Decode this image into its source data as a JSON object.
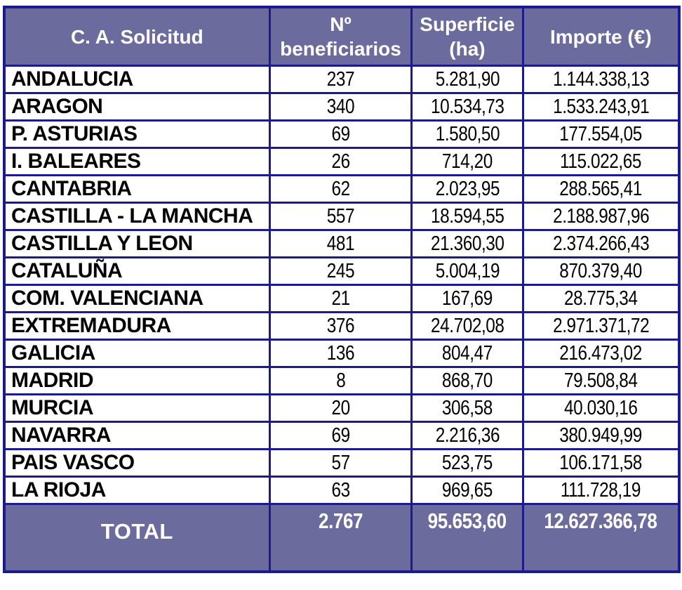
{
  "colors": {
    "header_bg": "#6b6b9e",
    "total_bg": "#6b6b9e",
    "grid_border": "#1b1b8e",
    "header_text": "#ffffff",
    "body_text": "#000000",
    "page_bg": "#ffffff"
  },
  "table": {
    "columns": {
      "region": "C. A. Solicitud",
      "beneficiaries": "Nº beneficiarios",
      "surface": "Superficie (ha)",
      "amount": "Importe (€)"
    },
    "rows": [
      {
        "region": "ANDALUCIA",
        "beneficiaries": "237",
        "surface": "5.281,90",
        "amount": "1.144.338,13"
      },
      {
        "region": "ARAGON",
        "beneficiaries": "340",
        "surface": "10.534,73",
        "amount": "1.533.243,91"
      },
      {
        "region": "P. ASTURIAS",
        "beneficiaries": "69",
        "surface": "1.580,50",
        "amount": "177.554,05"
      },
      {
        "region": "I. BALEARES",
        "beneficiaries": "26",
        "surface": "714,20",
        "amount": "115.022,65"
      },
      {
        "region": "CANTABRIA",
        "beneficiaries": "62",
        "surface": "2.023,95",
        "amount": "288.565,41"
      },
      {
        "region": "CASTILLA - LA MANCHA",
        "beneficiaries": "557",
        "surface": "18.594,55",
        "amount": "2.188.987,96"
      },
      {
        "region": "CASTILLA Y LEON",
        "beneficiaries": "481",
        "surface": "21.360,30",
        "amount": "2.374.266,43"
      },
      {
        "region": "CATALUÑA",
        "beneficiaries": "245",
        "surface": "5.004,19",
        "amount": "870.379,40"
      },
      {
        "region": "COM. VALENCIANA",
        "beneficiaries": "21",
        "surface": "167,69",
        "amount": "28.775,34"
      },
      {
        "region": "EXTREMADURA",
        "beneficiaries": "376",
        "surface": "24.702,08",
        "amount": "2.971.371,72"
      },
      {
        "region": "GALICIA",
        "beneficiaries": "136",
        "surface": "804,47",
        "amount": "216.473,02"
      },
      {
        "region": "MADRID",
        "beneficiaries": "8",
        "surface": "868,70",
        "amount": "79.508,84"
      },
      {
        "region": "MURCIA",
        "beneficiaries": "20",
        "surface": "306,58",
        "amount": "40.030,16"
      },
      {
        "region": "NAVARRA",
        "beneficiaries": "69",
        "surface": "2.216,36",
        "amount": "380.949,99"
      },
      {
        "region": "PAIS VASCO",
        "beneficiaries": "57",
        "surface": "523,75",
        "amount": "106.171,58"
      },
      {
        "region": "LA RIOJA",
        "beneficiaries": "63",
        "surface": "969,65",
        "amount": "111.728,19"
      }
    ],
    "total": {
      "label": "TOTAL",
      "beneficiaries": "2.767",
      "surface": "95.653,60",
      "amount": "12.627.366,78"
    }
  }
}
